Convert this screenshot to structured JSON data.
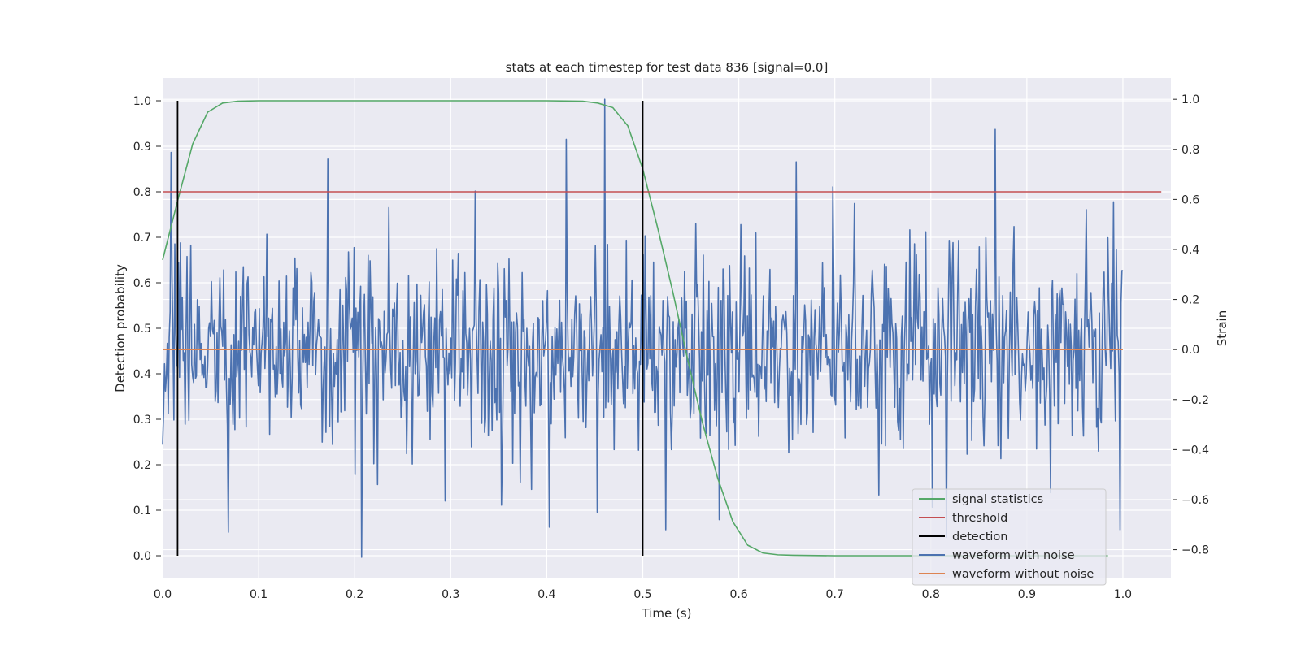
{
  "chart_data": {
    "type": "line",
    "title": "stats at each timestep for test data 836 [signal=0.0]",
    "xlabel": "Time (s)",
    "ylabel": "Detection probability",
    "y2label": "Strain",
    "xlim": [
      0.0,
      1.05
    ],
    "ylim": [
      -0.05,
      1.05
    ],
    "y2lim": [
      -0.915,
      1.085
    ],
    "xticks": [
      "0.0",
      "0.1",
      "0.2",
      "0.3",
      "0.4",
      "0.5",
      "0.6",
      "0.7",
      "0.8",
      "0.9",
      "1.0"
    ],
    "yticks": [
      "0.0",
      "0.1",
      "0.2",
      "0.3",
      "0.4",
      "0.5",
      "0.6",
      "0.7",
      "0.8",
      "0.9",
      "1.0"
    ],
    "y2ticks": [
      "−0.8",
      "−0.6",
      "−0.4",
      "−0.2",
      "0.0",
      "0.2",
      "0.4",
      "0.6",
      "0.8",
      "1.0"
    ],
    "grid": true,
    "legend_position": "lower right",
    "legend": [
      {
        "label": "signal statistics",
        "color": "#55a868"
      },
      {
        "label": "threshold",
        "color": "#c44e52"
      },
      {
        "label": "detection",
        "color": "#000000"
      },
      {
        "label": "waveform with noise",
        "color": "#4c72b0"
      },
      {
        "label": "waveform without noise",
        "color": "#dd8452"
      }
    ],
    "series": [
      {
        "name": "signal statistics",
        "axis": "left",
        "color": "#55a868",
        "x": [
          0.0,
          0.0156,
          0.0313,
          0.0469,
          0.0625,
          0.0781,
          0.1,
          0.2,
          0.3,
          0.4,
          0.4375,
          0.4531,
          0.4688,
          0.4844,
          0.5,
          0.5156,
          0.5313,
          0.5469,
          0.5625,
          0.5781,
          0.5938,
          0.6094,
          0.625,
          0.6406,
          0.6563,
          0.7,
          0.8,
          0.9,
          0.9688,
          0.9844
        ],
        "y": [
          0.65,
          0.78,
          0.905,
          0.975,
          0.995,
          0.999,
          1.0,
          1.0,
          1.0,
          1.0,
          0.999,
          0.995,
          0.985,
          0.945,
          0.85,
          0.72,
          0.58,
          0.43,
          0.29,
          0.17,
          0.075,
          0.023,
          0.006,
          0.002,
          0.001,
          0.0,
          0.0,
          0.0,
          0.0,
          0.0
        ]
      },
      {
        "name": "threshold",
        "axis": "left",
        "color": "#c44e52",
        "x": [
          0.0,
          1.04
        ],
        "y": [
          0.8,
          0.8
        ]
      },
      {
        "name": "waveform without noise",
        "axis": "right",
        "color": "#dd8452",
        "x": [
          0.0,
          1.0
        ],
        "y": [
          0.0,
          0.0
        ]
      }
    ],
    "detections": {
      "name": "detection",
      "color": "#000000",
      "x": [
        0.0156,
        0.5
      ],
      "y_range": [
        0.0,
        1.0
      ]
    },
    "noisy_waveform": {
      "name": "waveform with noise",
      "axis": "right",
      "color": "#4c72b0",
      "x_range": [
        0.0,
        1.0
      ],
      "num_points": 1024,
      "noise_sigma": 0.2,
      "seed": 836,
      "spikes": [
        {
          "x": 0.0,
          "y": -0.38
        },
        {
          "x": 0.068,
          "y": -0.73
        },
        {
          "x": 0.2075,
          "y": -0.83
        },
        {
          "x": 0.2,
          "y": -0.5
        },
        {
          "x": 0.372,
          "y": -0.53
        },
        {
          "x": 0.4025,
          "y": -0.71
        },
        {
          "x": 0.42,
          "y": 0.84
        },
        {
          "x": 0.4525,
          "y": -0.65
        },
        {
          "x": 0.4605,
          "y": 1.0
        },
        {
          "x": 0.47,
          "y": -0.4
        },
        {
          "x": 0.524,
          "y": -0.72
        },
        {
          "x": 0.58,
          "y": -0.68
        },
        {
          "x": 0.66,
          "y": 0.75
        },
        {
          "x": 0.698,
          "y": 0.65
        },
        {
          "x": 0.802,
          "y": -0.63
        },
        {
          "x": 0.816,
          "y": -0.75
        },
        {
          "x": 0.8675,
          "y": 0.88
        },
        {
          "x": 0.99,
          "y": 0.59
        },
        {
          "x": 0.9975,
          "y": -0.72
        }
      ]
    }
  }
}
